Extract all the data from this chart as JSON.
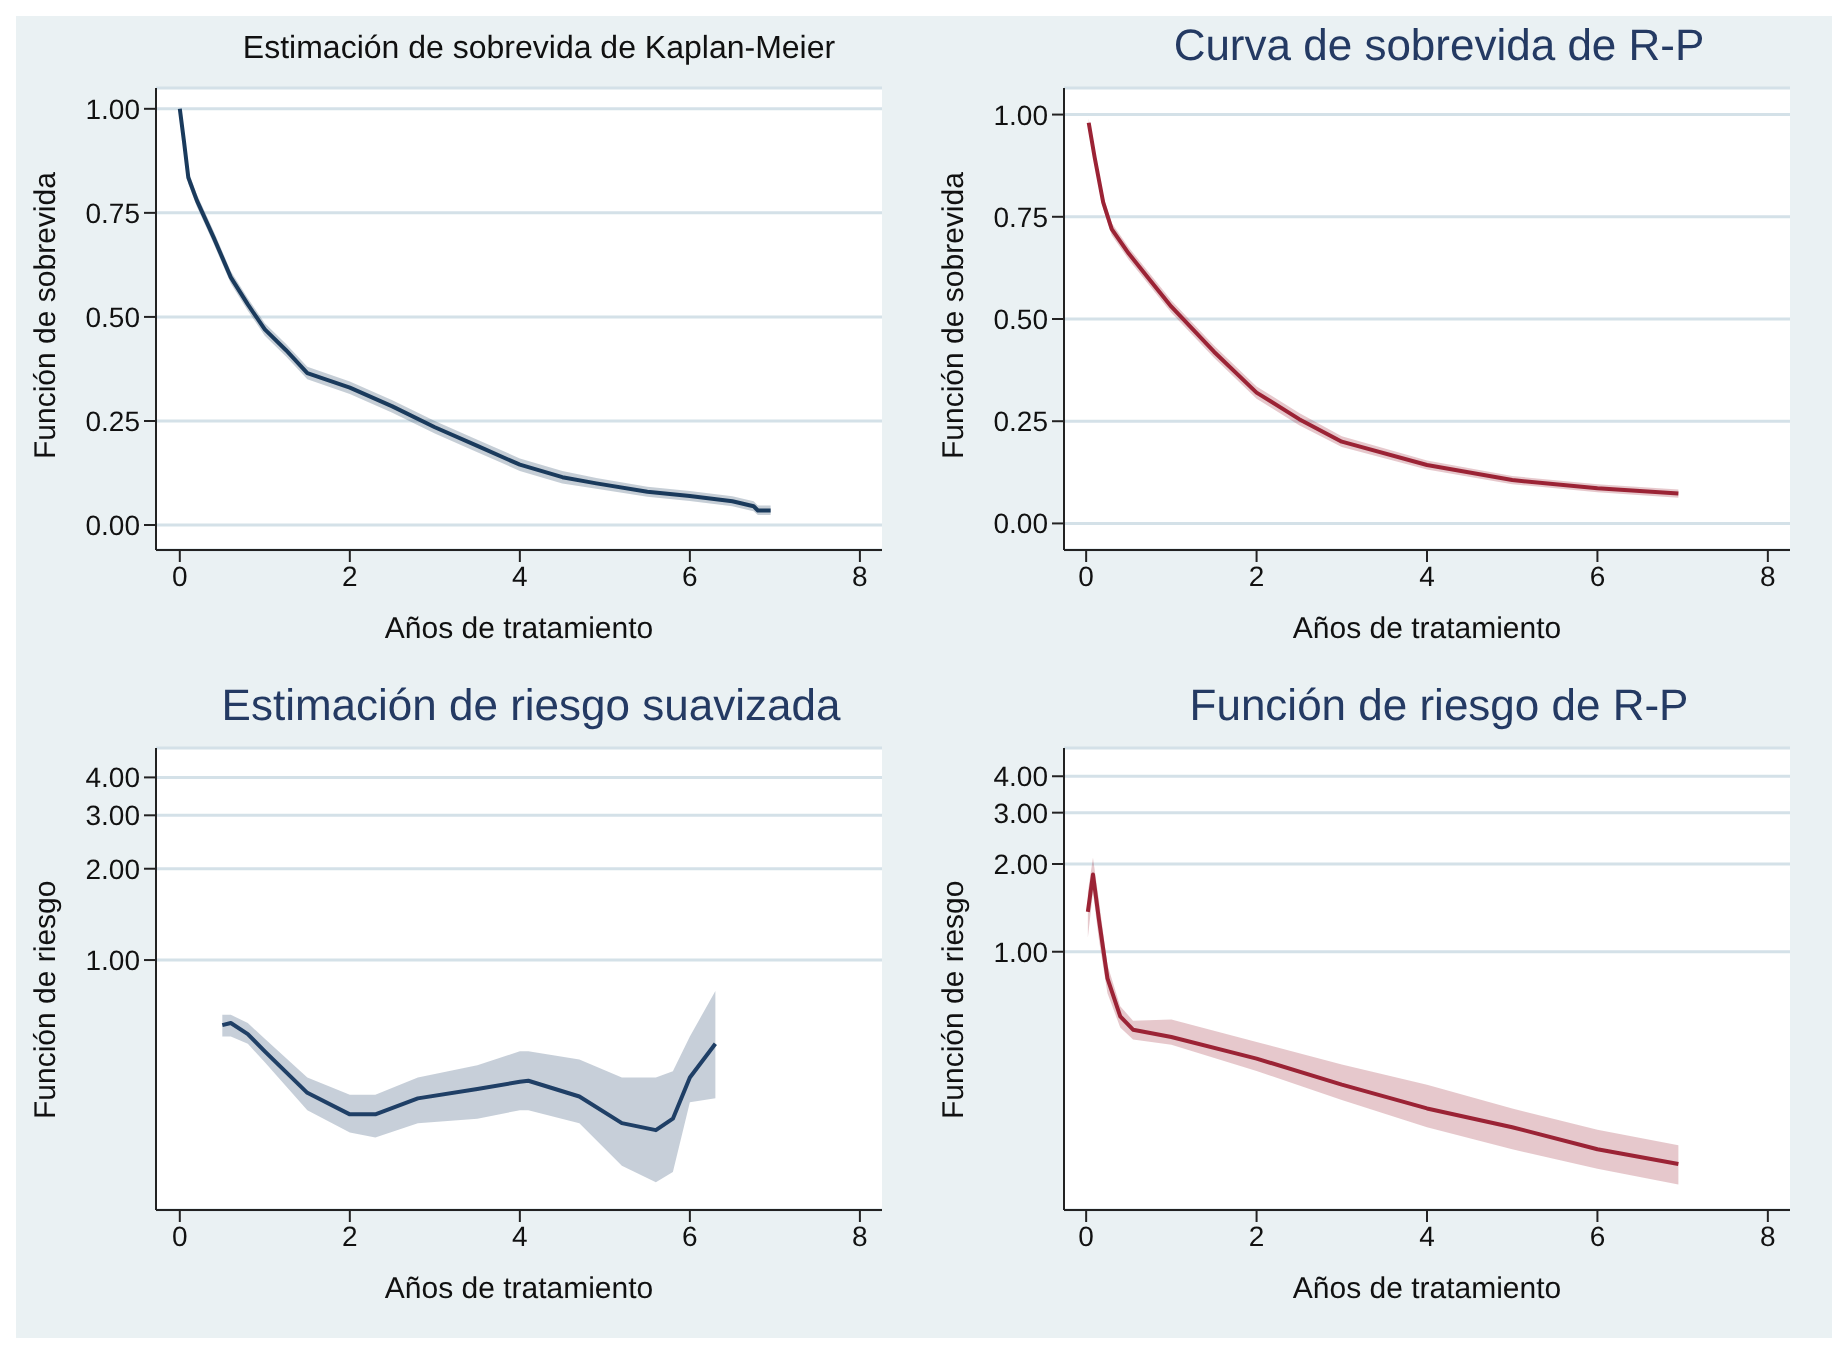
{
  "chart_data": [
    {
      "type": "line",
      "title": "Estimación de sobrevida de Kaplan-Meier",
      "xlabel": "Años de tratamiento",
      "ylabel": "Función de sobrevida",
      "x": [
        0,
        0.05,
        0.1,
        0.2,
        0.4,
        0.6,
        0.8,
        1.0,
        1.25,
        1.5,
        2,
        2.5,
        3,
        3.5,
        4,
        4.5,
        4.9,
        5.5,
        6,
        6.5,
        6.75,
        6.8,
        6.95
      ],
      "xlim": [
        -0.28,
        8.26
      ],
      "xticks": [
        0,
        2,
        4,
        6,
        8
      ],
      "ylim": [
        -0.06,
        1.05
      ],
      "yticks": [
        {
          "value": 0,
          "label": "0.00"
        },
        {
          "value": 0.25,
          "label": "0.25"
        },
        {
          "value": 0.5,
          "label": "0.50"
        },
        {
          "value": 0.75,
          "label": "0.75"
        },
        {
          "value": 1,
          "label": "1.00"
        }
      ],
      "grid": "y",
      "series": [
        {
          "color": "#1a3a5c",
          "values": [
            1.0,
            0.92,
            0.835,
            0.78,
            0.69,
            0.595,
            0.53,
            0.47,
            0.42,
            0.365,
            0.33,
            0.285,
            0.235,
            0.19,
            0.145,
            0.115,
            0.1,
            0.08,
            0.07,
            0.057,
            0.045,
            0.035,
            0.035
          ],
          "lower": [
            1.0,
            0.91,
            0.82,
            0.765,
            0.675,
            0.58,
            0.515,
            0.455,
            0.405,
            0.35,
            0.315,
            0.27,
            0.22,
            0.175,
            0.13,
            0.1,
            0.087,
            0.068,
            0.058,
            0.045,
            0.033,
            0.024,
            0.024
          ],
          "upper": [
            1.0,
            0.93,
            0.85,
            0.795,
            0.705,
            0.61,
            0.545,
            0.485,
            0.435,
            0.38,
            0.345,
            0.3,
            0.25,
            0.205,
            0.16,
            0.13,
            0.113,
            0.092,
            0.082,
            0.069,
            0.057,
            0.047,
            0.047
          ]
        }
      ]
    },
    {
      "type": "line",
      "title": "Curva de sobrevida de R-P",
      "xlabel": "Años de tratamiento",
      "ylabel": "Función de sobrevida",
      "x": [
        0.03,
        0.1,
        0.2,
        0.3,
        0.5,
        0.75,
        1,
        1.5,
        2,
        2.5,
        3,
        4,
        5,
        6,
        6.95
      ],
      "xlim": [
        -0.26,
        8.26
      ],
      "xticks": [
        0,
        2,
        4,
        6,
        8
      ],
      "ylim": [
        -0.065,
        1.065
      ],
      "yticks": [
        {
          "value": 0,
          "label": "0.00"
        },
        {
          "value": 0.25,
          "label": "0.25"
        },
        {
          "value": 0.5,
          "label": "0.50"
        },
        {
          "value": 0.75,
          "label": "0.75"
        },
        {
          "value": 1,
          "label": "1.00"
        }
      ],
      "grid": "y",
      "series": [
        {
          "color": "#9b2335",
          "values": [
            0.98,
            0.895,
            0.785,
            0.72,
            0.66,
            0.595,
            0.53,
            0.42,
            0.32,
            0.255,
            0.2,
            0.143,
            0.106,
            0.086,
            0.073
          ],
          "lower": [
            0.97,
            0.88,
            0.77,
            0.705,
            0.645,
            0.58,
            0.515,
            0.405,
            0.305,
            0.24,
            0.187,
            0.132,
            0.096,
            0.076,
            0.063
          ],
          "upper": [
            0.99,
            0.91,
            0.8,
            0.735,
            0.675,
            0.61,
            0.545,
            0.435,
            0.335,
            0.27,
            0.213,
            0.154,
            0.116,
            0.096,
            0.083
          ]
        }
      ]
    },
    {
      "type": "line",
      "title": "Estimación de riesgo suavizada",
      "xlabel": "Años de tratamiento",
      "ylabel": "Función de riesgo",
      "x": [
        0.5,
        0.6,
        0.8,
        1,
        1.5,
        2,
        2.3,
        2.8,
        3.5,
        4,
        4.1,
        4.7,
        5.2,
        5.6,
        5.8,
        6,
        6.3
      ],
      "xlim": [
        -0.28,
        8.26
      ],
      "xticks": [
        0,
        2,
        4,
        6,
        8
      ],
      "ylim": [
        0.15,
        5
      ],
      "yticks": [
        {
          "value": 1,
          "label": "1.00"
        },
        {
          "value": 2,
          "label": "2.00"
        },
        {
          "value": 3,
          "label": "3.00"
        },
        {
          "value": 4,
          "label": "4.00"
        }
      ],
      "log": true,
      "grid": "y",
      "series": [
        {
          "color": "#1f3f66",
          "values": [
            0.61,
            0.62,
            0.57,
            0.5,
            0.365,
            0.31,
            0.31,
            0.35,
            0.376,
            0.397,
            0.4,
            0.355,
            0.29,
            0.275,
            0.3,
            0.41,
            0.53
          ],
          "lower": [
            0.56,
            0.56,
            0.53,
            0.46,
            0.32,
            0.27,
            0.26,
            0.29,
            0.3,
            0.32,
            0.32,
            0.29,
            0.21,
            0.185,
            0.2,
            0.34,
            0.35
          ],
          "upper": [
            0.66,
            0.66,
            0.62,
            0.55,
            0.41,
            0.36,
            0.36,
            0.41,
            0.45,
            0.5,
            0.5,
            0.47,
            0.41,
            0.41,
            0.43,
            0.56,
            0.79
          ]
        }
      ]
    },
    {
      "type": "line",
      "title": "Función de riesgo de R-P",
      "xlabel": "Años de tratamiento",
      "ylabel": "Función de riesgo",
      "x": [
        0.02,
        0.08,
        0.15,
        0.25,
        0.4,
        0.55,
        1,
        2,
        3,
        4,
        5,
        6,
        6.95
      ],
      "xlim": [
        -0.26,
        8.26
      ],
      "xticks": [
        0,
        2,
        4,
        6,
        8
      ],
      "ylim": [
        0.13,
        5
      ],
      "yticks": [
        {
          "value": 1,
          "label": "1.00"
        },
        {
          "value": 2,
          "label": "2.00"
        },
        {
          "value": 3,
          "label": "3.00"
        },
        {
          "value": 4,
          "label": "4.00"
        }
      ],
      "log": true,
      "grid": "y",
      "series": [
        {
          "color": "#9b2335",
          "values": [
            1.37,
            1.84,
            1.29,
            0.81,
            0.6,
            0.54,
            0.51,
            0.43,
            0.35,
            0.29,
            0.25,
            0.21,
            0.187
          ],
          "lower": [
            1.12,
            1.6,
            1.1,
            0.72,
            0.55,
            0.5,
            0.48,
            0.39,
            0.31,
            0.25,
            0.21,
            0.18,
            0.159
          ],
          "upper": [
            1.6,
            2.1,
            1.5,
            0.9,
            0.65,
            0.58,
            0.585,
            0.49,
            0.41,
            0.35,
            0.29,
            0.245,
            0.217
          ]
        }
      ]
    }
  ]
}
